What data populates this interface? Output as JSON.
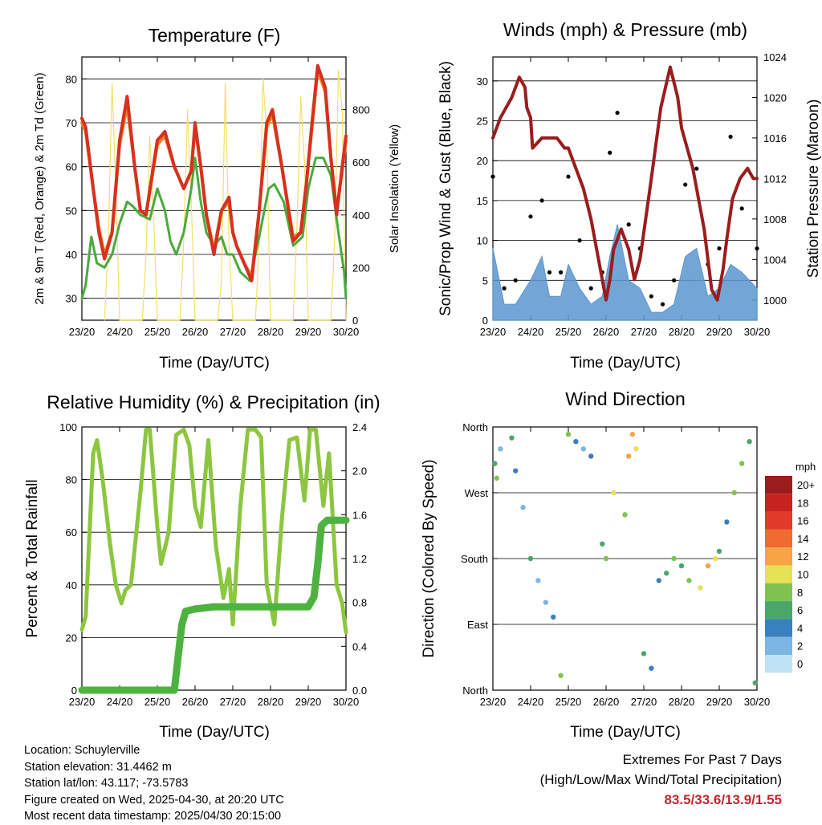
{
  "colors": {
    "temp_2m": "#d7301f",
    "temp_9m": "#f3862b",
    "dewpoint": "#4aaa3c",
    "solar": "#f5de6a",
    "wind": "#5a96d0",
    "gust": "#000000",
    "pressure": "#9b1c1c",
    "rh": "#8cc63f",
    "precip": "#4db340"
  },
  "x_ticks": [
    "23/20",
    "24/20",
    "25/20",
    "26/20",
    "27/20",
    "28/20",
    "29/20",
    "30/20"
  ],
  "x_title": "Time (Day/UTC)",
  "panels": {
    "temperature": {
      "title": "Temperature (F)",
      "ylabel_left": "2m & 9m T (Red, Orange) & 2m Td (Green)",
      "ylabel_right": "Solar Insolation (Yellow)",
      "left_ticks": [
        "30",
        "40",
        "50",
        "60",
        "70",
        "80"
      ],
      "right_ticks": [
        "0",
        "200",
        "400",
        "600",
        "800"
      ]
    },
    "winds": {
      "title": "Winds (mph) & Pressure (mb)",
      "ylabel_left": "Sonic/Prop Wind & Gust (Blue, Black)",
      "ylabel_right": "Station Pressure (Maroon)",
      "left_ticks": [
        "0",
        "5",
        "10",
        "15",
        "20",
        "25",
        "30"
      ],
      "right_ticks": [
        "1000",
        "1004",
        "1008",
        "1012",
        "1016",
        "1020",
        "1024"
      ]
    },
    "humidity": {
      "title": "Relative Humidity (%) & Precipitation (in)",
      "ylabel_left": "Percent & Total Rainfall",
      "left_ticks": [
        "0",
        "20",
        "40",
        "60",
        "80",
        "100"
      ],
      "right_ticks": [
        "0.0",
        "0.4",
        "0.8",
        "1.2",
        "1.6",
        "2.0",
        "2.4"
      ]
    },
    "direction": {
      "title": "Wind Direction",
      "ylabel_left": "Direction (Colored By Speed)",
      "left_ticks": [
        "North",
        "East",
        "South",
        "West",
        "North"
      ],
      "legend_title": "mph",
      "legend_labels": [
        "20+",
        "18",
        "16",
        "14",
        "12",
        "10",
        "8",
        "6",
        "4",
        "2",
        "0"
      ],
      "legend_colors": [
        "#9b1c1c",
        "#c8221f",
        "#e23a2a",
        "#f06b30",
        "#f8a444",
        "#e6e255",
        "#80c252",
        "#4aa66a",
        "#3a7fbe",
        "#7db6e2",
        "#bfe3f6"
      ]
    }
  },
  "footer": {
    "location": "Location: Schuylerville",
    "elevation": "Station elevation: 31.4462 m",
    "latlon": "Station lat/lon: 43.117; -73.5783",
    "created": "Figure created on Wed, 2025-04-30, at 20:20 UTC",
    "latest": "Most recent data timestamp: 2025/04/30 20:15:00"
  },
  "extremes": {
    "title": "Extremes For Past 7 Days",
    "subtitle": "(High/Low/Max Wind/Total Precipitation)",
    "values": "83.5/33.6/13.9/1.55"
  },
  "chart_data": [
    {
      "type": "line",
      "title": "Temperature (F)",
      "xlabel": "Time (Day/UTC)",
      "ylabel": "2m & 9m T (Red, Orange) & 2m Td (Green)",
      "ylabel_right": "Solar Insolation (Yellow)",
      "xlim": [
        0,
        7
      ],
      "ylim": [
        25,
        85
      ],
      "ylim_right": [
        0,
        1000
      ],
      "grid": true,
      "series": [
        {
          "name": "2m T",
          "axis": "left",
          "x": [
            0,
            0.1,
            0.3,
            0.45,
            0.6,
            0.8,
            1.0,
            1.2,
            1.4,
            1.55,
            1.7,
            2.0,
            2.2,
            2.45,
            2.7,
            2.9,
            3.0,
            3.15,
            3.3,
            3.5,
            3.7,
            3.9,
            4.0,
            4.1,
            4.3,
            4.5,
            4.7,
            4.9,
            5.05,
            5.3,
            5.6,
            5.8,
            5.95,
            6.1,
            6.25,
            6.45,
            6.6,
            6.75,
            6.9,
            7.0
          ],
          "y": [
            71,
            69,
            55,
            45,
            39,
            45,
            66,
            76,
            60,
            50,
            49,
            66,
            68,
            60,
            55,
            59,
            70,
            60,
            49,
            40,
            50,
            53,
            45,
            42,
            38,
            34,
            50,
            70,
            73,
            60,
            43,
            45,
            56,
            70,
            83,
            78,
            62,
            49,
            60,
            67
          ]
        },
        {
          "name": "9m T",
          "axis": "left",
          "x": [
            0,
            0.1,
            0.3,
            0.45,
            0.6,
            0.8,
            1.0,
            1.2,
            1.4,
            1.55,
            1.7,
            2.0,
            2.2,
            2.45,
            2.7,
            2.9,
            3.0,
            3.15,
            3.3,
            3.5,
            3.7,
            3.9,
            4.0,
            4.1,
            4.3,
            4.5,
            4.7,
            4.9,
            5.05,
            5.3,
            5.6,
            5.8,
            5.95,
            6.1,
            6.25,
            6.45,
            6.6,
            6.75,
            6.9,
            7.0
          ],
          "y": [
            70,
            68,
            55,
            46,
            40,
            45,
            65,
            74,
            60,
            50,
            49,
            65,
            67,
            60,
            55,
            59,
            69,
            60,
            49,
            41,
            50,
            52,
            45,
            42,
            38,
            35,
            50,
            69,
            72,
            60,
            44,
            45,
            56,
            69,
            82,
            77,
            62,
            50,
            59,
            66
          ]
        },
        {
          "name": "2m Td",
          "axis": "left",
          "x": [
            0,
            0.1,
            0.25,
            0.4,
            0.6,
            0.8,
            1.0,
            1.2,
            1.35,
            1.55,
            1.8,
            2.0,
            2.2,
            2.35,
            2.5,
            2.7,
            2.9,
            3.0,
            3.15,
            3.3,
            3.5,
            3.7,
            3.85,
            4.0,
            4.2,
            4.45,
            4.7,
            4.95,
            5.1,
            5.35,
            5.6,
            5.85,
            6.0,
            6.2,
            6.4,
            6.6,
            6.8,
            6.95,
            7.0
          ],
          "y": [
            30,
            33,
            44,
            38,
            37,
            40,
            47,
            52,
            51,
            49,
            48,
            55,
            50,
            43,
            40,
            45,
            55,
            62,
            52,
            45,
            42,
            44,
            40,
            40,
            36,
            34,
            44,
            55,
            56,
            52,
            42,
            44,
            55,
            62,
            62,
            58,
            45,
            36,
            30
          ]
        },
        {
          "name": "Solar Insolation",
          "axis": "right",
          "x": [
            0.6,
            0.7,
            0.8,
            0.9,
            1.0,
            1.6,
            1.7,
            1.8,
            1.9,
            2.0,
            2.6,
            2.7,
            2.8,
            2.9,
            3.0,
            3.6,
            3.7,
            3.8,
            3.9,
            4.0,
            4.6,
            4.7,
            4.8,
            4.9,
            5.0,
            5.6,
            5.7,
            5.8,
            5.9,
            6.0,
            6.6,
            6.7,
            6.8,
            6.9,
            7.0
          ],
          "y": [
            0,
            300,
            900,
            500,
            0,
            0,
            250,
            700,
            400,
            0,
            0,
            300,
            800,
            450,
            0,
            0,
            150,
            900,
            300,
            0,
            0,
            300,
            920,
            700,
            0,
            0,
            350,
            850,
            600,
            0,
            0,
            300,
            950,
            800,
            0
          ]
        }
      ]
    },
    {
      "type": "line",
      "title": "Winds (mph) & Pressure (mb)",
      "xlabel": "Time (Day/UTC)",
      "ylabel": "Sonic/Prop Wind & Gust (Blue, Black)",
      "ylabel_right": "Station Pressure (Maroon)",
      "xlim": [
        0,
        7
      ],
      "ylim": [
        0,
        33
      ],
      "ylim_right": [
        998,
        1024
      ],
      "grid": true,
      "series": [
        {
          "name": "Station Pressure",
          "axis": "right",
          "x": [
            0,
            0.2,
            0.5,
            0.7,
            0.85,
            0.9,
            1.0,
            1.05,
            1.3,
            1.5,
            1.7,
            1.9,
            2.0,
            2.2,
            2.4,
            2.6,
            2.8,
            3.0,
            3.1,
            3.2,
            3.4,
            3.6,
            3.75,
            3.9,
            4.2,
            4.45,
            4.7,
            4.9,
            5.0,
            5.3,
            5.6,
            5.8,
            5.95,
            6.1,
            6.2,
            6.35,
            6.55,
            6.75,
            6.9,
            7.0
          ],
          "y": [
            1016,
            1018,
            1020,
            1022,
            1021,
            1019,
            1018,
            1015,
            1016,
            1016,
            1016,
            1015,
            1015,
            1013,
            1011,
            1008,
            1004,
            1000,
            1002,
            1005,
            1007,
            1005,
            1002,
            1004,
            1012,
            1019,
            1023,
            1020,
            1017,
            1013,
            1007,
            1001,
            1000,
            1003,
            1006,
            1010,
            1012,
            1013,
            1012,
            1012
          ]
        },
        {
          "name": "Wind",
          "axis": "left",
          "x": [
            0,
            0.3,
            0.6,
            1.0,
            1.3,
            1.5,
            1.8,
            2.0,
            2.3,
            2.6,
            2.9,
            3.1,
            3.3,
            3.6,
            3.9,
            4.2,
            4.5,
            4.8,
            5.1,
            5.4,
            5.7,
            6.0,
            6.3,
            6.6,
            7.0
          ],
          "y": [
            9,
            2,
            2,
            5,
            8,
            3,
            3,
            7,
            4,
            2,
            3,
            8,
            12,
            5,
            4,
            1,
            1,
            2,
            8,
            9,
            3,
            4,
            7,
            6,
            4
          ]
        },
        {
          "name": "Gust",
          "axis": "left",
          "x": [
            0,
            0.3,
            0.6,
            1.0,
            1.3,
            1.5,
            1.8,
            2.0,
            2.3,
            2.6,
            2.9,
            3.1,
            3.3,
            3.6,
            3.9,
            4.2,
            4.5,
            4.8,
            5.1,
            5.4,
            5.7,
            6.0,
            6.3,
            6.6,
            7.0
          ],
          "y": [
            18,
            4,
            5,
            13,
            15,
            6,
            6,
            18,
            10,
            4,
            6,
            21,
            26,
            12,
            9,
            3,
            2,
            5,
            17,
            19,
            7,
            9,
            23,
            14,
            9
          ]
        }
      ]
    },
    {
      "type": "line",
      "title": "Relative Humidity (%) & Precipitation (in)",
      "xlabel": "Time (Day/UTC)",
      "ylabel": "Percent & Total Rainfall",
      "xlim": [
        0,
        7
      ],
      "ylim": [
        0,
        100
      ],
      "ylim_right": [
        0,
        2.4
      ],
      "grid": true,
      "series": [
        {
          "name": "Relative Humidity",
          "axis": "left",
          "x": [
            0,
            0.1,
            0.3,
            0.4,
            0.55,
            0.75,
            0.9,
            1.05,
            1.15,
            1.3,
            1.55,
            1.7,
            1.8,
            2.0,
            2.1,
            2.3,
            2.5,
            2.7,
            2.85,
            3.0,
            3.15,
            3.35,
            3.55,
            3.75,
            3.9,
            4.0,
            4.2,
            4.4,
            4.6,
            4.75,
            4.9,
            5.1,
            5.3,
            5.5,
            5.7,
            5.9,
            6.05,
            6.2,
            6.4,
            6.55,
            6.75,
            6.9,
            7.0
          ],
          "y": [
            23,
            28,
            90,
            95,
            80,
            55,
            40,
            33,
            38,
            40,
            75,
            99,
            99,
            62,
            48,
            60,
            97,
            99,
            93,
            70,
            62,
            95,
            55,
            35,
            46,
            25,
            70,
            99,
            99,
            96,
            40,
            25,
            65,
            95,
            96,
            72,
            99,
            99,
            70,
            90,
            40,
            33,
            22
          ]
        },
        {
          "name": "Total Precipitation",
          "axis": "right",
          "x": [
            0,
            0.5,
            1.0,
            1.5,
            2.0,
            2.45,
            2.55,
            2.65,
            2.75,
            3.0,
            3.5,
            4.0,
            4.5,
            5.0,
            5.5,
            6.0,
            6.15,
            6.25,
            6.35,
            6.5,
            7.0
          ],
          "y": [
            0.0,
            0.0,
            0.0,
            0.0,
            0.0,
            0.0,
            0.3,
            0.6,
            0.72,
            0.74,
            0.76,
            0.76,
            0.76,
            0.76,
            0.76,
            0.76,
            0.85,
            1.15,
            1.5,
            1.55,
            1.55
          ]
        }
      ]
    },
    {
      "type": "scatter",
      "title": "Wind Direction",
      "xlabel": "Time (Day/UTC)",
      "ylabel": "Direction (Colored By Speed)",
      "xlim": [
        0,
        7
      ],
      "ylim": [
        0,
        360
      ],
      "y_ticks": [
        0,
        90,
        180,
        270,
        360
      ],
      "y_tick_labels": [
        "North",
        "East",
        "South",
        "West",
        "North"
      ],
      "color_scale": "speed mph (0 to 20+)",
      "grid": true,
      "series": [
        {
          "name": "Wind Direction",
          "x": [
            0.05,
            0.1,
            0.2,
            0.5,
            0.6,
            0.8,
            1.0,
            1.2,
            1.4,
            1.6,
            1.8,
            2.0,
            2.2,
            2.4,
            2.6,
            2.9,
            3.0,
            3.2,
            3.5,
            3.6,
            3.7,
            3.8,
            4.0,
            4.2,
            4.4,
            4.6,
            4.8,
            5.0,
            5.2,
            5.5,
            5.7,
            5.9,
            6.0,
            6.2,
            6.4,
            6.6,
            6.8,
            6.95
          ],
          "y": [
            310,
            290,
            330,
            345,
            300,
            250,
            180,
            150,
            120,
            100,
            20,
            350,
            340,
            330,
            320,
            200,
            180,
            270,
            240,
            320,
            350,
            330,
            50,
            30,
            150,
            160,
            180,
            170,
            150,
            140,
            170,
            180,
            190,
            230,
            270,
            310,
            340,
            10
          ],
          "speed": [
            6,
            7,
            2,
            5,
            3,
            2,
            6,
            2,
            2,
            3,
            7,
            8,
            4,
            2,
            3,
            5,
            8,
            10,
            7,
            11,
            12,
            9,
            6,
            3,
            4,
            6,
            8,
            5,
            7,
            9,
            11,
            10,
            6,
            4,
            7,
            8,
            6,
            5
          ]
        }
      ]
    }
  ]
}
